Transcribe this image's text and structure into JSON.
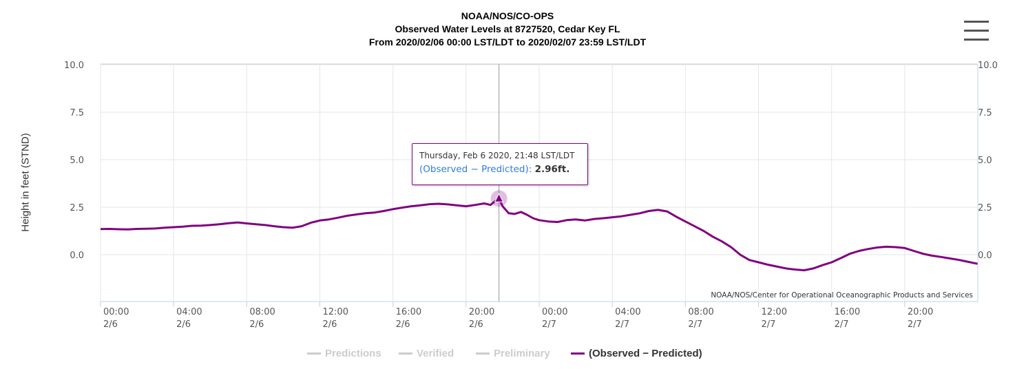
{
  "header": {
    "title_line1": "NOAA/NOS/CO-OPS",
    "title_line2": "Observed Water Levels at 8727520, Cedar Key FL",
    "title_line3": "From 2020/02/06 00:00 LST/LDT to 2020/02/07 23:59 LST/LDT"
  },
  "menu": {
    "icon": "hamburger-menu-icon"
  },
  "tooltip": {
    "date": "Thursday, Feb 6 2020, 21:48 LST/LDT",
    "series": "(Observed − Predicted):",
    "value": "2.96ft."
  },
  "credit": "NOAA/NOS/Center for Operational Oceanographic Products and Services",
  "legend": {
    "items": [
      {
        "label": "Predictions",
        "state": "hidden"
      },
      {
        "label": "Verified",
        "state": "hidden"
      },
      {
        "label": "Preliminary",
        "state": "hidden"
      },
      {
        "label": "(Observed − Predicted)",
        "state": "active"
      }
    ]
  },
  "colors": {
    "series": "#800080",
    "hidden": "#cccccc",
    "grid": "#e6e6e6",
    "tooltip_series": "#2f7ed8"
  },
  "chart_data": {
    "type": "line",
    "title": "NOAA/NOS/CO-OPS",
    "subtitle": "Observed Water Levels at 8727520, Cedar Key FL",
    "ylabel": "Height in feet (STND)",
    "xlabel": "",
    "ylim": [
      -2.5,
      10.0
    ],
    "y_ticks": [
      "10.0",
      "7.5",
      "5.0",
      "2.5",
      "0.0"
    ],
    "x_ticks": [
      {
        "time": "00:00",
        "date": "2/6"
      },
      {
        "time": "04:00",
        "date": "2/6"
      },
      {
        "time": "08:00",
        "date": "2/6"
      },
      {
        "time": "12:00",
        "date": "2/6"
      },
      {
        "time": "16:00",
        "date": "2/6"
      },
      {
        "time": "20:00",
        "date": "2/6"
      },
      {
        "time": "00:00",
        "date": "2/7"
      },
      {
        "time": "04:00",
        "date": "2/7"
      },
      {
        "time": "08:00",
        "date": "2/7"
      },
      {
        "time": "12:00",
        "date": "2/7"
      },
      {
        "time": "16:00",
        "date": "2/7"
      },
      {
        "time": "20:00",
        "date": "2/7"
      }
    ],
    "grid": true,
    "legend_position": "bottom-center",
    "highlight": {
      "x": "2020-02-06 21:48",
      "y": 2.96
    },
    "series": [
      {
        "name": "(Observed − Predicted)",
        "x": [
          "2020-02-06 00:00",
          "2020-02-06 00:30",
          "2020-02-06 01:00",
          "2020-02-06 01:30",
          "2020-02-06 02:00",
          "2020-02-06 02:30",
          "2020-02-06 03:00",
          "2020-02-06 03:30",
          "2020-02-06 04:00",
          "2020-02-06 04:30",
          "2020-02-06 05:00",
          "2020-02-06 05:30",
          "2020-02-06 06:00",
          "2020-02-06 06:30",
          "2020-02-06 07:00",
          "2020-02-06 07:30",
          "2020-02-06 08:00",
          "2020-02-06 08:30",
          "2020-02-06 09:00",
          "2020-02-06 09:30",
          "2020-02-06 10:00",
          "2020-02-06 10:30",
          "2020-02-06 11:00",
          "2020-02-06 11:30",
          "2020-02-06 12:00",
          "2020-02-06 12:30",
          "2020-02-06 13:00",
          "2020-02-06 13:30",
          "2020-02-06 14:00",
          "2020-02-06 14:30",
          "2020-02-06 15:00",
          "2020-02-06 15:30",
          "2020-02-06 16:00",
          "2020-02-06 16:30",
          "2020-02-06 17:00",
          "2020-02-06 17:30",
          "2020-02-06 18:00",
          "2020-02-06 18:30",
          "2020-02-06 19:00",
          "2020-02-06 19:30",
          "2020-02-06 20:00",
          "2020-02-06 20:30",
          "2020-02-06 21:00",
          "2020-02-06 21:20",
          "2020-02-06 21:30",
          "2020-02-06 21:48",
          "2020-02-06 22:00",
          "2020-02-06 22:20",
          "2020-02-06 22:40",
          "2020-02-06 23:00",
          "2020-02-06 23:20",
          "2020-02-06 23:40",
          "2020-02-07 00:00",
          "2020-02-07 00:30",
          "2020-02-07 01:00",
          "2020-02-07 01:30",
          "2020-02-07 02:00",
          "2020-02-07 02:30",
          "2020-02-07 03:00",
          "2020-02-07 03:30",
          "2020-02-07 04:00",
          "2020-02-07 04:30",
          "2020-02-07 05:00",
          "2020-02-07 05:30",
          "2020-02-07 06:00",
          "2020-02-07 06:30",
          "2020-02-07 07:00",
          "2020-02-07 07:30",
          "2020-02-07 08:00",
          "2020-02-07 08:30",
          "2020-02-07 09:00",
          "2020-02-07 09:30",
          "2020-02-07 10:00",
          "2020-02-07 10:30",
          "2020-02-07 11:00",
          "2020-02-07 11:30",
          "2020-02-07 12:00",
          "2020-02-07 12:30",
          "2020-02-07 13:00",
          "2020-02-07 13:30",
          "2020-02-07 14:00",
          "2020-02-07 14:30",
          "2020-02-07 15:00",
          "2020-02-07 15:30",
          "2020-02-07 16:00",
          "2020-02-07 16:30",
          "2020-02-07 17:00",
          "2020-02-07 17:30",
          "2020-02-07 18:00",
          "2020-02-07 18:30",
          "2020-02-07 19:00",
          "2020-02-07 19:30",
          "2020-02-07 20:00",
          "2020-02-07 20:30",
          "2020-02-07 21:00",
          "2020-02-07 21:30",
          "2020-02-07 22:00",
          "2020-02-07 22:30",
          "2020-02-07 23:00",
          "2020-02-07 23:30",
          "2020-02-07 23:59"
        ],
        "y": [
          1.35,
          1.36,
          1.34,
          1.33,
          1.36,
          1.37,
          1.38,
          1.42,
          1.45,
          1.48,
          1.52,
          1.53,
          1.56,
          1.6,
          1.66,
          1.7,
          1.65,
          1.6,
          1.56,
          1.5,
          1.45,
          1.42,
          1.5,
          1.68,
          1.8,
          1.86,
          1.95,
          2.05,
          2.12,
          2.18,
          2.22,
          2.3,
          2.4,
          2.48,
          2.55,
          2.6,
          2.66,
          2.68,
          2.65,
          2.6,
          2.55,
          2.62,
          2.7,
          2.62,
          2.75,
          2.96,
          2.55,
          2.18,
          2.15,
          2.25,
          2.1,
          1.92,
          1.82,
          1.75,
          1.72,
          1.82,
          1.86,
          1.8,
          1.88,
          1.92,
          1.97,
          2.02,
          2.1,
          2.18,
          2.3,
          2.36,
          2.28,
          2.0,
          1.75,
          1.5,
          1.25,
          0.95,
          0.7,
          0.4,
          0.0,
          -0.28,
          -0.4,
          -0.52,
          -0.62,
          -0.72,
          -0.78,
          -0.82,
          -0.72,
          -0.55,
          -0.4,
          -0.18,
          0.05,
          0.2,
          0.3,
          0.38,
          0.42,
          0.4,
          0.35,
          0.2,
          0.05,
          -0.05,
          -0.12,
          -0.2,
          -0.28,
          -0.38,
          -0.48
        ]
      }
    ]
  }
}
